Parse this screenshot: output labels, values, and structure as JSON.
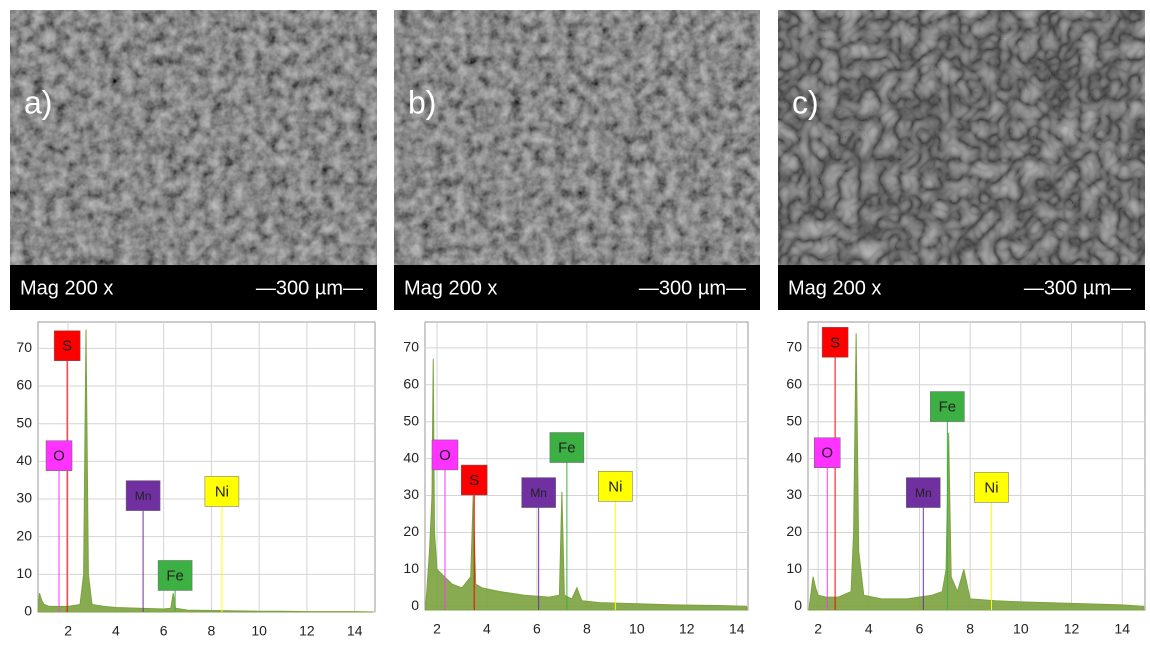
{
  "panels": [
    {
      "label": "a)",
      "caption": "Mag 200 x",
      "scale": "—300 µm—"
    },
    {
      "label": "b)",
      "caption": "Mag 200 x",
      "scale": "—300 µm—"
    },
    {
      "label": "c)",
      "caption": "Mag 200 x",
      "scale": "—300 µm—"
    }
  ],
  "chart_data": [
    {
      "type": "area",
      "color": "#7ba23f",
      "x": [
        0.75,
        0.8,
        0.9,
        1.0,
        1.2,
        1.5,
        2.0,
        2.5,
        2.65,
        2.75,
        2.85,
        3.0,
        3.5,
        4,
        5,
        6,
        6.3,
        6.4,
        6.5,
        6.7,
        7,
        8,
        9,
        10,
        11,
        12,
        13,
        14,
        14.8
      ],
      "values": [
        0,
        5,
        3,
        2,
        1.5,
        1.5,
        1.5,
        2,
        10,
        75,
        10,
        2,
        1.5,
        1.2,
        1,
        0.8,
        1,
        5,
        1,
        0.8,
        0.5,
        0.4,
        0.3,
        0.2,
        0.2,
        0.1,
        0.1,
        0.1,
        0
      ],
      "xlim": [
        0.74,
        14.85
      ],
      "ylim": [
        0,
        77
      ],
      "xticks": [
        2,
        4,
        6,
        8,
        10,
        12,
        14
      ],
      "yticks": [
        0,
        10,
        20,
        30,
        40,
        50,
        60,
        70
      ],
      "grid": true,
      "annotations": [
        {
          "text": "S",
          "x": 1.96,
          "y": 70.7,
          "color": "#ff0000"
        },
        {
          "text": "O",
          "x": 1.62,
          "y": 41.5,
          "color": "#ff33ff"
        },
        {
          "text": "Mn",
          "x": 5.14,
          "y": 30.9,
          "color": "#7030a0"
        },
        {
          "text": "Ni",
          "x": 8.44,
          "y": 32,
          "color": "#ffff00"
        },
        {
          "text": "Fe",
          "x": 6.48,
          "y": 9.7,
          "color": "#3cb043"
        }
      ]
    },
    {
      "type": "area",
      "color": "#7ba23f",
      "x": [
        1.55,
        1.7,
        1.8,
        1.85,
        1.9,
        2.0,
        2.3,
        2.6,
        3.0,
        3.35,
        3.45,
        3.55,
        3.8,
        4.5,
        5.5,
        6.5,
        6.9,
        7.0,
        7.1,
        7.4,
        7.6,
        7.8,
        8.5,
        9.5,
        10.5,
        11.5,
        12.5,
        13.5,
        14.4
      ],
      "values": [
        0,
        15,
        30,
        67,
        20,
        10,
        8,
        6,
        5,
        8,
        30,
        6,
        5,
        4,
        3,
        2.5,
        3,
        31,
        3,
        2,
        5,
        1.5,
        1,
        0.8,
        0.6,
        0.4,
        0.3,
        0.2,
        0
      ],
      "xlim": [
        1.52,
        14.45
      ],
      "ylim": [
        -1,
        77
      ],
      "xticks": [
        2,
        4,
        6,
        8,
        10,
        12,
        14
      ],
      "yticks": [
        0,
        10,
        20,
        30,
        40,
        50,
        60,
        70
      ],
      "grid": true,
      "annotations": [
        {
          "text": "O",
          "x": 2.32,
          "y": 41,
          "color": "#ff33ff"
        },
        {
          "text": "S",
          "x": 3.49,
          "y": 34.2,
          "color": "#ff0000"
        },
        {
          "text": "Fe",
          "x": 7.2,
          "y": 43,
          "color": "#3cb043"
        },
        {
          "text": "Mn",
          "x": 6.07,
          "y": 30.8,
          "color": "#7030a0"
        },
        {
          "text": "Ni",
          "x": 9.14,
          "y": 32.5,
          "color": "#ffff00"
        }
      ]
    },
    {
      "type": "area",
      "color": "#7ba23f",
      "x": [
        1.65,
        1.8,
        1.9,
        2.0,
        2.3,
        2.8,
        3.3,
        3.4,
        3.5,
        3.6,
        3.8,
        4.5,
        5.5,
        6.5,
        6.9,
        7.05,
        7.15,
        7.25,
        7.5,
        7.75,
        8.0,
        9,
        10,
        11,
        12,
        13,
        14,
        14.85
      ],
      "values": [
        0,
        8,
        5,
        3,
        2.5,
        2.5,
        4,
        20,
        74,
        15,
        3,
        2,
        2,
        3,
        4,
        10,
        47,
        8,
        4,
        10,
        2,
        1.5,
        1.2,
        1,
        0.8,
        0.6,
        0.4,
        0
      ],
      "xlim": [
        1.6,
        14.9
      ],
      "ylim": [
        -1,
        77
      ],
      "xticks": [
        2,
        4,
        6,
        8,
        10,
        12,
        14
      ],
      "yticks": [
        0,
        10,
        20,
        30,
        40,
        50,
        60,
        70
      ],
      "grid": true,
      "annotations": [
        {
          "text": "S",
          "x": 2.67,
          "y": 71.5,
          "color": "#ff0000"
        },
        {
          "text": "O",
          "x": 2.36,
          "y": 41.6,
          "color": "#ff33ff"
        },
        {
          "text": "Fe",
          "x": 7.1,
          "y": 54.1,
          "color": "#3cb043"
        },
        {
          "text": "Mn",
          "x": 6.15,
          "y": 30.8,
          "color": "#7030a0"
        },
        {
          "text": "Ni",
          "x": 8.84,
          "y": 32.2,
          "color": "#ffff00"
        }
      ]
    }
  ]
}
